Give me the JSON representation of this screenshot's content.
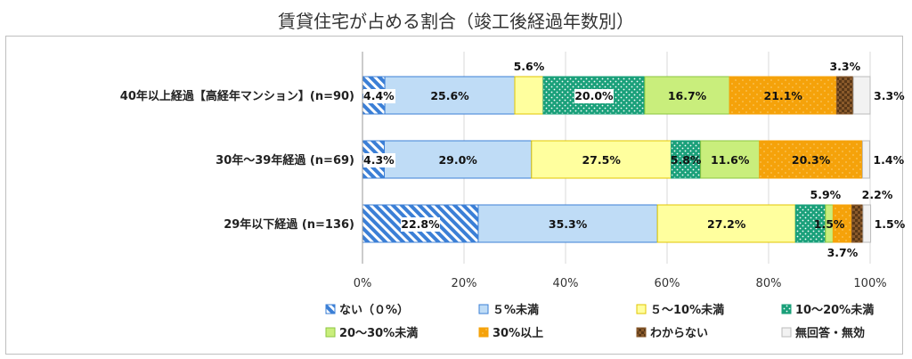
{
  "chart_data": {
    "type": "bar",
    "orientation": "horizontal",
    "stacked": true,
    "title": "賃貸住宅が占める割合（竣工後経過年数別）",
    "categories": [
      "40年以上経過【高経年マンション】(n=90)",
      "30年～39年経過 (n=69)",
      "29年以下経過  (n=136)"
    ],
    "xlim": [
      0,
      100
    ],
    "x_ticks": [
      "0%",
      "20%",
      "40%",
      "60%",
      "80%",
      "100%"
    ],
    "grid": true,
    "legend_position": "bottom",
    "series": [
      {
        "name": "ない（０%）",
        "color": "#3b7fd6",
        "pattern": "hatch",
        "values": [
          4.4,
          4.3,
          22.8
        ],
        "labels": [
          "4.4%",
          "4.3%",
          "22.8%"
        ]
      },
      {
        "name": "５%未満",
        "color": "#bfdcf6",
        "pattern": "solid",
        "values": [
          25.6,
          29.0,
          35.3
        ],
        "labels": [
          "25.6%",
          "29.0%",
          "35.3%"
        ]
      },
      {
        "name": "５～10%未満",
        "color": "#ffff9e",
        "pattern": "solid",
        "values": [
          5.6,
          27.5,
          27.2
        ],
        "labels": [
          "5.6%",
          "27.5%",
          "27.2%"
        ]
      },
      {
        "name": "10～20%未満",
        "color": "#1aa07a",
        "pattern": "dots",
        "values": [
          20.0,
          5.8,
          5.9
        ],
        "labels": [
          "20.0%",
          "5.8%",
          "5.9%"
        ]
      },
      {
        "name": "20～30%未満",
        "color": "#c9ee7c",
        "pattern": "solid",
        "values": [
          16.7,
          11.6,
          1.5
        ],
        "labels": [
          "16.7%",
          "11.6%",
          "1.5%"
        ]
      },
      {
        "name": "30%以上",
        "color": "#f5a20a",
        "pattern": "dots",
        "values": [
          21.1,
          20.3,
          3.7
        ],
        "labels": [
          "21.1%",
          "20.3%",
          "3.7%"
        ]
      },
      {
        "name": "わからない",
        "color": "#8a5a2b",
        "pattern": "checker",
        "values": [
          3.3,
          0.0,
          2.2
        ],
        "labels": [
          "3.3%",
          "",
          "2.2%"
        ]
      },
      {
        "name": "無回答・無効",
        "color": "#f2f2f2",
        "pattern": "solid",
        "values": [
          3.3,
          1.4,
          1.5
        ],
        "labels": [
          "3.3%",
          "1.4%",
          "1.5%"
        ]
      }
    ]
  }
}
